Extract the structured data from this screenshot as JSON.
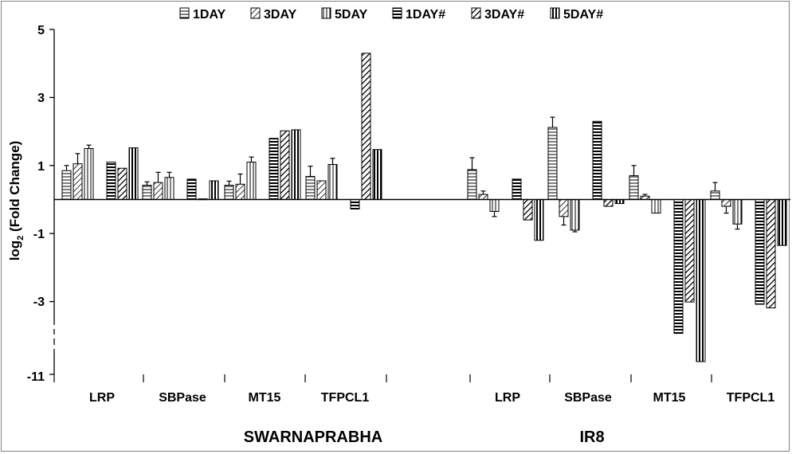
{
  "chart_data": {
    "type": "bar",
    "title": "",
    "ylabel": "log₂ (Fold Change)",
    "ylabel_main": "log",
    "ylabel_sub": "2",
    "ylabel_rest": " (Fold Change)",
    "ylim": [
      -11,
      5
    ],
    "y_ticks": [
      "5",
      "3",
      "1",
      "-1",
      "-3",
      "-11"
    ],
    "axis_break": "between -3 and -11",
    "legend_position": "top",
    "legend": [
      "1DAY",
      "3DAY",
      "5DAY",
      "1DAY#",
      "3DAY#",
      "5DAY#"
    ],
    "groups": [
      {
        "name": "SWARNAPRABHA",
        "genes": [
          {
            "label": "LRP",
            "values": [
              0.85,
              1.05,
              1.5,
              1.1,
              0.92,
              1.52
            ],
            "errors": [
              0.15,
              0.3,
              0.1,
              null,
              null,
              null
            ]
          },
          {
            "label": "SBPase",
            "values": [
              0.42,
              0.5,
              0.65,
              0.6,
              0.02,
              0.55
            ],
            "errors": [
              0.1,
              0.3,
              0.15,
              null,
              null,
              null
            ]
          },
          {
            "label": "MT15",
            "values": [
              0.42,
              0.45,
              1.1,
              1.8,
              2.02,
              2.05
            ],
            "errors": [
              0.12,
              0.3,
              0.15,
              null,
              null,
              null
            ]
          },
          {
            "label": "TFPCL1",
            "values": [
              0.68,
              0.55,
              1.03,
              -0.28,
              4.3,
              1.47
            ],
            "errors": [
              0.3,
              null,
              0.18,
              null,
              null,
              null
            ]
          }
        ]
      },
      {
        "name": "IR8",
        "genes": [
          {
            "label": "LRP",
            "values": [
              0.88,
              0.15,
              -0.35,
              0.6,
              -0.6,
              -1.2
            ],
            "errors": [
              0.35,
              0.1,
              0.15,
              null,
              null,
              null
            ]
          },
          {
            "label": "SBPase",
            "values": [
              2.12,
              -0.5,
              -0.9,
              2.3,
              -0.2,
              -0.12
            ],
            "errors": [
              0.3,
              0.25,
              0.05,
              null,
              null,
              null
            ]
          },
          {
            "label": "MT15",
            "values": [
              0.7,
              0.1,
              -0.4,
              -6.5,
              -3.05,
              -9.6
            ],
            "errors": [
              0.3,
              0.05,
              null,
              null,
              null,
              null
            ]
          },
          {
            "label": "TFPCL1",
            "values": [
              0.25,
              -0.2,
              -0.72,
              -3.3,
              -3.7,
              -1.35
            ],
            "errors": [
              0.25,
              0.2,
              0.15,
              null,
              null,
              null
            ]
          }
        ]
      }
    ]
  },
  "colors": {
    "bar_fill": "#ffffff",
    "bar_stroke": "#000000",
    "axis": "#000000"
  }
}
